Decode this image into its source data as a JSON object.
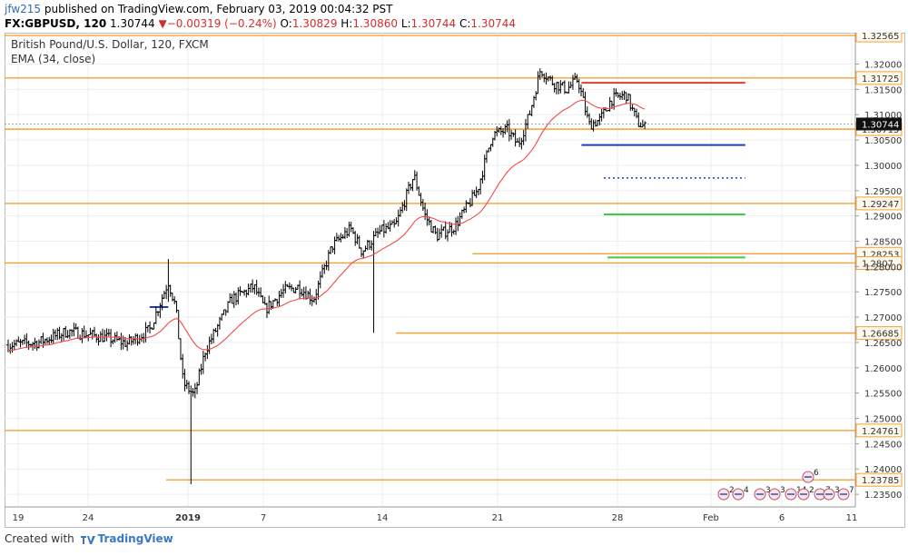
{
  "header": {
    "author": "jfw215",
    "published_text": "published on TradingView.com, February 03, 2019 00:04:32 PST",
    "symbol_line": {
      "symbol": "FX:GBPUSD, 120",
      "last": "1.30744",
      "change": "−0.00319 (−0.24%)",
      "open_label": "O:",
      "open": "1.30829",
      "high_label": "H:",
      "high": "1.30860",
      "low_label": "L:",
      "low": "1.30744",
      "close_label": "C:",
      "close": "1.30744"
    }
  },
  "footer": {
    "prefix": "Created with",
    "brand": "TradingView"
  },
  "colors": {
    "orange": "#f7a033",
    "red": "#e53935",
    "blue": "#1e3fbd",
    "green": "#3ccf3c",
    "ema": "#f04a4a",
    "bar": "#000000",
    "grid": "#eeeeee"
  },
  "chart_data": {
    "type": "ohlc",
    "title": "British Pound/U.S. Dollar, 120, FXCM",
    "indicator": "EMA (34, close)",
    "ylim": [
      1.2325,
      1.3262
    ],
    "y_ticks": [
      "1.32000",
      "1.31500",
      "1.31000",
      "1.30500",
      "1.30000",
      "1.29500",
      "1.29000",
      "1.28500",
      "1.28000",
      "1.27500",
      "1.27000",
      "1.26500",
      "1.26000",
      "1.25500",
      "1.25000",
      "1.24500",
      "1.24000",
      "1.23500"
    ],
    "x_ticks": [
      "19",
      "24",
      "2019",
      "7",
      "14",
      "21",
      "28",
      "Feb",
      "6",
      "11"
    ],
    "last_price": "1.30744",
    "levels": [
      {
        "price": 1.32565,
        "label": "1.32565",
        "start": 0
      },
      {
        "price": 1.31725,
        "label": "1.31725",
        "start": 0
      },
      {
        "price": 1.30715,
        "label": "1.30715",
        "start": 0
      },
      {
        "price": 1.29247,
        "label": "1.29247",
        "start": 0
      },
      {
        "price": 1.28253,
        "label": "1.28253",
        "start": 0.55
      },
      {
        "price": 1.2807,
        "label": "1.2807",
        "start": 0
      },
      {
        "price": 1.26685,
        "label": "1.26685",
        "start": 0.46
      },
      {
        "price": 1.24761,
        "label": "1.24761",
        "start": 0
      },
      {
        "price": 1.23785,
        "label": "1.23785",
        "start": 0.19
      }
    ],
    "events": [
      {
        "label": "6"
      },
      {
        "label": "2"
      },
      {
        "label": "4"
      },
      {
        "label": "3"
      },
      {
        "label": "3"
      },
      {
        "label": "14"
      },
      {
        "label": "2"
      },
      {
        "label": "7"
      },
      {
        "label": "3"
      },
      {
        "label": "7"
      }
    ],
    "anchors": [
      {
        "t": 0.0,
        "p": 1.2645
      },
      {
        "t": 0.04,
        "p": 1.265
      },
      {
        "t": 0.08,
        "p": 1.2672
      },
      {
        "t": 0.13,
        "p": 1.266
      },
      {
        "t": 0.16,
        "p": 1.2648
      },
      {
        "t": 0.19,
        "p": 1.2675
      },
      {
        "t": 0.215,
        "p": 1.277
      },
      {
        "t": 0.225,
        "p": 1.272
      },
      {
        "t": 0.235,
        "p": 1.257
      },
      {
        "t": 0.25,
        "p": 1.2545
      },
      {
        "t": 0.265,
        "p": 1.2635
      },
      {
        "t": 0.3,
        "p": 1.2735
      },
      {
        "t": 0.33,
        "p": 1.276
      },
      {
        "t": 0.345,
        "p": 1.2715
      },
      {
        "t": 0.37,
        "p": 1.2752
      },
      {
        "t": 0.39,
        "p": 1.276
      },
      {
        "t": 0.41,
        "p": 1.2735
      },
      {
        "t": 0.435,
        "p": 1.284
      },
      {
        "t": 0.46,
        "p": 1.2875
      },
      {
        "t": 0.475,
        "p": 1.283
      },
      {
        "t": 0.5,
        "p": 1.287
      },
      {
        "t": 0.52,
        "p": 1.288
      },
      {
        "t": 0.545,
        "p": 1.298
      },
      {
        "t": 0.56,
        "p": 1.29
      },
      {
        "t": 0.575,
        "p": 1.286
      },
      {
        "t": 0.6,
        "p": 1.288
      },
      {
        "t": 0.63,
        "p": 1.295
      },
      {
        "t": 0.65,
        "p": 1.306
      },
      {
        "t": 0.67,
        "p": 1.307
      },
      {
        "t": 0.685,
        "p": 1.304
      },
      {
        "t": 0.7,
        "p": 1.31
      },
      {
        "t": 0.715,
        "p": 1.319
      },
      {
        "t": 0.73,
        "p": 1.3165
      },
      {
        "t": 0.75,
        "p": 1.315
      },
      {
        "t": 0.765,
        "p": 1.317
      },
      {
        "t": 0.78,
        "p": 1.308
      },
      {
        "t": 0.795,
        "p": 1.309
      },
      {
        "t": 0.81,
        "p": 1.313
      },
      {
        "t": 0.83,
        "p": 1.314
      },
      {
        "t": 0.845,
        "p": 1.3085
      },
      {
        "t": 0.855,
        "p": 1.3075
      }
    ],
    "spikes": [
      {
        "t": 0.245,
        "high": 1.2565,
        "low": 1.237
      },
      {
        "t": 0.49,
        "high": 1.285,
        "low": 1.2669
      },
      {
        "t": 0.215,
        "high": 1.2815,
        "low": 1.273
      }
    ]
  }
}
